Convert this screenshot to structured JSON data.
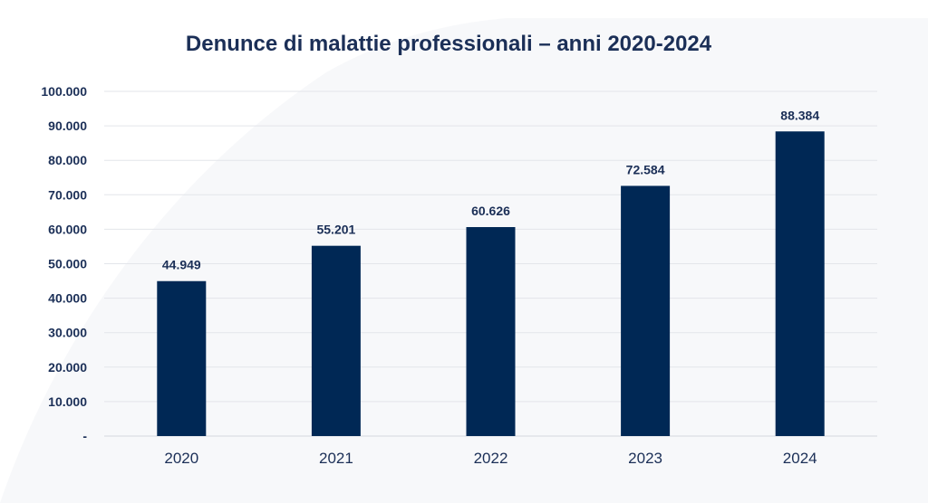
{
  "chart_data": {
    "type": "bar",
    "title": "Denunce di malattie professionali – anni 2020-2024",
    "xlabel": "",
    "ylabel": "",
    "categories": [
      "2020",
      "2021",
      "2022",
      "2023",
      "2024"
    ],
    "values": [
      44949,
      55201,
      60626,
      72584,
      88384
    ],
    "value_labels": [
      "44.949",
      "55.201",
      "60.626",
      "72.584",
      "88.384"
    ],
    "ylim": [
      0,
      100000
    ],
    "yticks": [
      0,
      10000,
      20000,
      30000,
      40000,
      50000,
      60000,
      70000,
      80000,
      90000,
      100000
    ],
    "ytick_labels": [
      "-",
      "10.000",
      "20.000",
      "30.000",
      "40.000",
      "50.000",
      "60.000",
      "70.000",
      "80.000",
      "90.000",
      "100.000"
    ],
    "grid": true,
    "legend": "none",
    "colors": {
      "bar": "#002855",
      "text": "#1b2f57",
      "grid": "#e3e5ea",
      "background": "#ffffff"
    }
  }
}
